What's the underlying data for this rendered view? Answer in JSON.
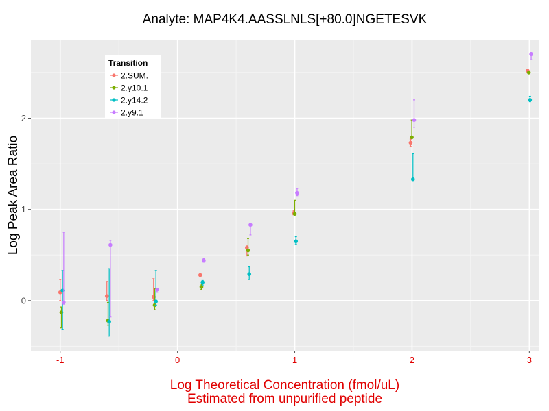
{
  "chart_data": {
    "type": "scatter",
    "title": "Analyte: MAP4K4.AASSLNLS[+80.0]NGETESVK",
    "xlabel_lines": [
      "Log Theoretical Concentration (fmol/uL)",
      "Estimated from unpurified peptide"
    ],
    "ylabel": "Log Peak Area Ratio",
    "xlabel_color": "#e00000",
    "xlim": [
      -1.25,
      3.08
    ],
    "ylim": [
      -0.55,
      2.86
    ],
    "x_ticks": [
      -1,
      0,
      1,
      2,
      3
    ],
    "x_tick_labels": [
      "-1",
      "0",
      "1",
      "2",
      "3"
    ],
    "y_ticks": [
      0,
      1,
      2
    ],
    "y_tick_labels": [
      "0",
      "1",
      "2"
    ],
    "grid": true,
    "panel_background": "#ebebeb",
    "legend": {
      "title": "Transition",
      "position": "top-left-inside"
    },
    "series": [
      {
        "name": "2.SUM.",
        "color": "#f8766d",
        "x": [
          -1,
          -0.602,
          -0.204,
          0.194,
          0.592,
          0.99,
          1.988,
          2.986
        ],
        "y": [
          0.09,
          0.05,
          0.04,
          0.28,
          0.58,
          0.96,
          1.73,
          2.52
        ],
        "err_low": [
          0.0,
          0.0,
          0.0,
          0.26,
          0.49,
          0.94,
          1.69,
          2.5
        ],
        "err_high": [
          0.23,
          0.21,
          0.24,
          0.3,
          0.6,
          0.99,
          1.77,
          2.54
        ]
      },
      {
        "name": "2.y10.1",
        "color": "#7cae00",
        "x": [
          -0.99,
          -0.592,
          -0.194,
          0.204,
          0.602,
          1.0,
          1.998,
          2.996
        ],
        "y": [
          -0.13,
          -0.22,
          -0.05,
          0.15,
          0.55,
          0.95,
          1.79,
          2.5
        ],
        "err_low": [
          -0.3,
          -0.27,
          -0.1,
          0.12,
          0.5,
          0.94,
          1.78,
          2.49
        ],
        "err_high": [
          -0.07,
          -0.02,
          0.13,
          0.18,
          0.68,
          1.1,
          1.98,
          2.51
        ]
      },
      {
        "name": "2.y14.2",
        "color": "#00bfc4",
        "x": [
          -0.98,
          -0.582,
          -0.184,
          0.214,
          0.612,
          1.01,
          2.008,
          3.006
        ],
        "y": [
          0.11,
          -0.23,
          -0.01,
          0.2,
          0.29,
          0.65,
          1.33,
          2.2
        ],
        "err_low": [
          -0.32,
          -0.39,
          -0.05,
          0.17,
          0.23,
          0.62,
          1.33,
          2.18
        ],
        "err_high": [
          0.33,
          0.35,
          0.33,
          0.22,
          0.37,
          0.7,
          1.61,
          2.24
        ]
      },
      {
        "name": "2.y9.1",
        "color": "#c77cff",
        "x": [
          -0.97,
          -0.572,
          -0.174,
          0.224,
          0.622,
          1.02,
          2.018,
          3.016
        ],
        "y": [
          -0.02,
          0.61,
          0.12,
          0.44,
          0.83,
          1.18,
          1.98,
          2.7
        ],
        "err_low": [
          -0.04,
          -0.18,
          0.09,
          0.42,
          0.72,
          1.15,
          1.9,
          2.64
        ],
        "err_high": [
          0.75,
          0.66,
          0.13,
          0.46,
          0.84,
          1.23,
          2.2,
          2.72
        ]
      }
    ]
  }
}
